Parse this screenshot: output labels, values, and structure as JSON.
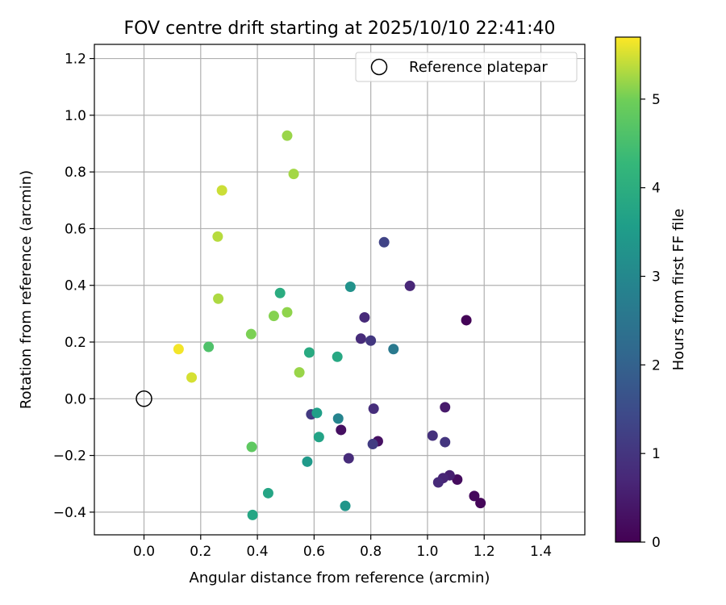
{
  "chart_data": {
    "type": "scatter",
    "title": "FOV centre drift starting at 2025/10/10 22:41:40",
    "xlabel": "Angular distance from reference (arcmin)",
    "ylabel": "Rotation from reference (arcmin)",
    "xlim": [
      -0.175,
      1.555
    ],
    "ylim": [
      -0.48,
      1.25
    ],
    "xticks": [
      "0.0",
      "0.2",
      "0.4",
      "0.6",
      "0.8",
      "1.0",
      "1.2",
      "1.4"
    ],
    "xtick_values": [
      0,
      0.2,
      0.4,
      0.6,
      0.8,
      1.0,
      1.2,
      1.4
    ],
    "yticks": [
      "−0.4",
      "−0.2",
      "0.0",
      "0.2",
      "0.4",
      "0.6",
      "0.8",
      "1.0",
      "1.2"
    ],
    "ytick_values": [
      -0.4,
      -0.2,
      0,
      0.2,
      0.4,
      0.6,
      0.8,
      1.0,
      1.2
    ],
    "grid": true,
    "legend_position": "top-right",
    "legend": {
      "label": "Reference platepar"
    },
    "reference_point": {
      "x": 0.0,
      "y": 0.0
    },
    "colorbar": {
      "label": "Hours from first FF file",
      "colormap": "viridis",
      "range": [
        0,
        5.7
      ],
      "ticks": [
        "0",
        "1",
        "2",
        "3",
        "4",
        "5"
      ],
      "tick_values": [
        0,
        1,
        2,
        3,
        4,
        5
      ]
    },
    "points": [
      {
        "x": 1.137,
        "y": 0.277,
        "hours": 0.05
      },
      {
        "x": 1.187,
        "y": -0.368,
        "hours": 0.1
      },
      {
        "x": 1.165,
        "y": -0.343,
        "hours": 0.15
      },
      {
        "x": 1.105,
        "y": -0.285,
        "hours": 0.2
      },
      {
        "x": 0.695,
        "y": -0.11,
        "hours": 0.25
      },
      {
        "x": 0.825,
        "y": -0.15,
        "hours": 0.3
      },
      {
        "x": 1.062,
        "y": -0.03,
        "hours": 0.45
      },
      {
        "x": 1.078,
        "y": -0.27,
        "hours": 0.55
      },
      {
        "x": 1.055,
        "y": -0.28,
        "hours": 0.65
      },
      {
        "x": 1.038,
        "y": -0.295,
        "hours": 0.75
      },
      {
        "x": 0.722,
        "y": -0.21,
        "hours": 0.8
      },
      {
        "x": 0.938,
        "y": 0.398,
        "hours": 0.7
      },
      {
        "x": 0.778,
        "y": 0.287,
        "hours": 0.75
      },
      {
        "x": 0.765,
        "y": 0.212,
        "hours": 0.8
      },
      {
        "x": 0.81,
        "y": -0.035,
        "hours": 0.85
      },
      {
        "x": 1.018,
        "y": -0.13,
        "hours": 0.9
      },
      {
        "x": 1.062,
        "y": -0.153,
        "hours": 1.0
      },
      {
        "x": 0.8,
        "y": 0.205,
        "hours": 1.05
      },
      {
        "x": 0.59,
        "y": -0.055,
        "hours": 1.1
      },
      {
        "x": 0.807,
        "y": -0.16,
        "hours": 1.15
      },
      {
        "x": 0.847,
        "y": 0.552,
        "hours": 1.3
      },
      {
        "x": 0.88,
        "y": 0.175,
        "hours": 2.6
      },
      {
        "x": 0.685,
        "y": -0.07,
        "hours": 2.9
      },
      {
        "x": 0.728,
        "y": 0.395,
        "hours": 3.25
      },
      {
        "x": 0.71,
        "y": -0.378,
        "hours": 3.35
      },
      {
        "x": 0.576,
        "y": -0.222,
        "hours": 3.45
      },
      {
        "x": 0.61,
        "y": -0.05,
        "hours": 3.6
      },
      {
        "x": 0.617,
        "y": -0.135,
        "hours": 3.7
      },
      {
        "x": 0.438,
        "y": -0.333,
        "hours": 3.75
      },
      {
        "x": 0.383,
        "y": -0.41,
        "hours": 3.8
      },
      {
        "x": 0.682,
        "y": 0.148,
        "hours": 3.85
      },
      {
        "x": 0.583,
        "y": 0.163,
        "hours": 3.9
      },
      {
        "x": 0.48,
        "y": 0.373,
        "hours": 3.95
      },
      {
        "x": 0.228,
        "y": 0.183,
        "hours": 4.6
      },
      {
        "x": 0.38,
        "y": -0.17,
        "hours": 4.8
      },
      {
        "x": 0.378,
        "y": 0.228,
        "hours": 5.05
      },
      {
        "x": 0.458,
        "y": 0.292,
        "hours": 5.1
      },
      {
        "x": 0.505,
        "y": 0.305,
        "hours": 5.15
      },
      {
        "x": 0.548,
        "y": 0.093,
        "hours": 5.2
      },
      {
        "x": 0.505,
        "y": 0.928,
        "hours": 5.2
      },
      {
        "x": 0.528,
        "y": 0.793,
        "hours": 5.25
      },
      {
        "x": 0.262,
        "y": 0.353,
        "hours": 5.3
      },
      {
        "x": 0.26,
        "y": 0.572,
        "hours": 5.35
      },
      {
        "x": 0.275,
        "y": 0.735,
        "hours": 5.45
      },
      {
        "x": 0.168,
        "y": 0.075,
        "hours": 5.5
      },
      {
        "x": 0.122,
        "y": 0.175,
        "hours": 5.65
      }
    ]
  }
}
